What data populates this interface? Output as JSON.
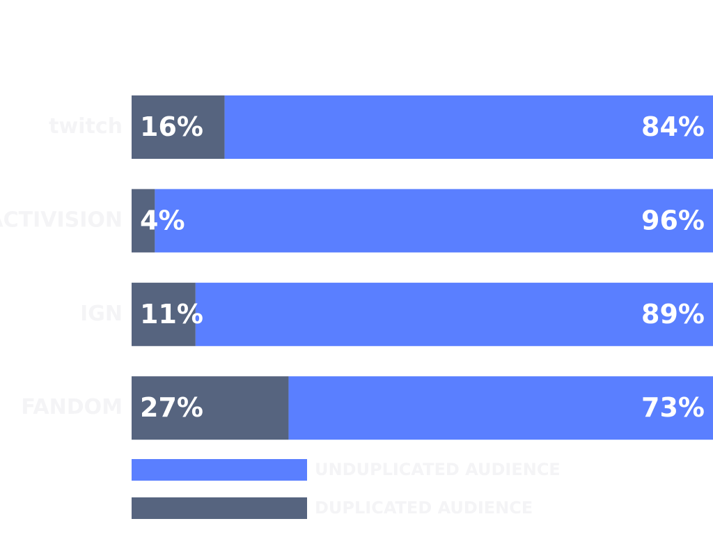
{
  "chart_data": {
    "type": "stacked-bar-horizontal",
    "categories": [
      "twitch",
      "ACTIVISION",
      "IGN",
      "FANDOM"
    ],
    "series": [
      {
        "name": "DUPLICATED AUDIENCE",
        "color": "#56647f",
        "values": [
          16,
          4,
          11,
          27
        ],
        "value_labels": [
          "16%",
          "4%",
          "11%",
          "27%"
        ]
      },
      {
        "name": "UNDUPLICATED AUDIENCE",
        "color": "#5a7fff",
        "values": [
          84,
          96,
          89,
          73
        ],
        "value_labels": [
          "84%",
          "96%",
          "89%",
          "73%"
        ]
      }
    ]
  }
}
